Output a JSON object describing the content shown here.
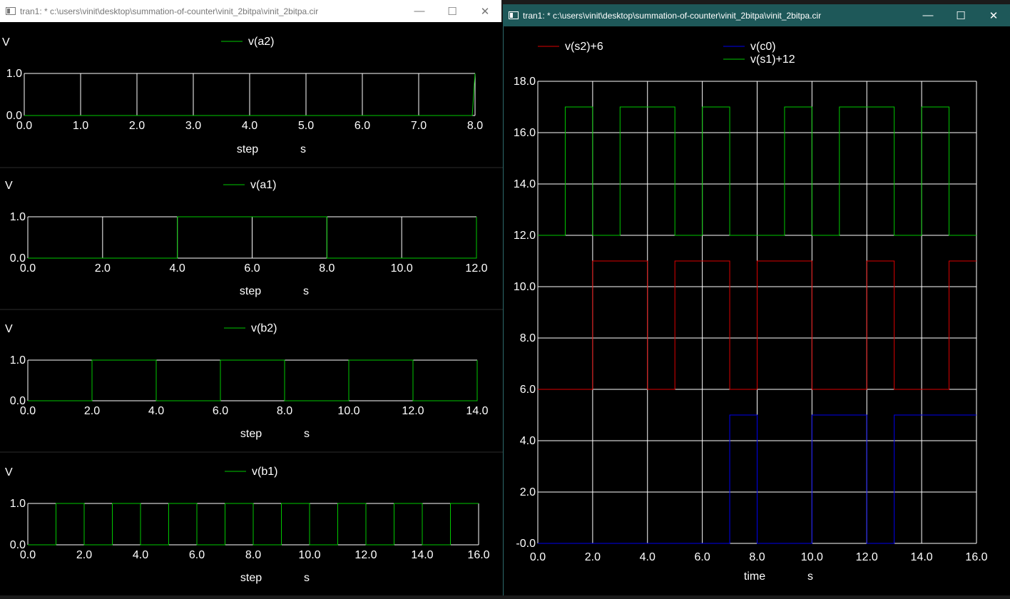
{
  "windows": [
    {
      "title": "tran1: * c:\\users\\vinit\\desktop\\summation-of-counter\\vinit_2bitpa\\vinit_2bitpa.cir",
      "controls": {
        "minimize": "—",
        "maximize": "☐",
        "close": "✕"
      }
    },
    {
      "title": "tran1: * c:\\users\\vinit\\desktop\\summation-of-counter\\vinit_2bitpa\\vinit_2bitpa.cir",
      "controls": {
        "minimize": "—",
        "maximize": "☐",
        "close": "✕"
      }
    }
  ],
  "colors": {
    "background": "#000000",
    "grid": "#ffffff",
    "text": "#ffffff",
    "green": "#00c800",
    "red": "#dd0000",
    "blue": "#0000ee"
  },
  "chart_data": [
    {
      "type": "line",
      "ylabel": "V",
      "xlabel": "step",
      "xunit": "s",
      "xlim": [
        0,
        8
      ],
      "ylim": [
        0,
        1
      ],
      "xticks": [
        "0.0",
        "1.0",
        "2.0",
        "3.0",
        "4.0",
        "5.0",
        "6.0",
        "7.0",
        "8.0"
      ],
      "yticks": [
        "0.0",
        "1.0"
      ],
      "series": [
        {
          "name": "v(a2)",
          "color": "#00c800",
          "x": [
            0,
            7.95,
            8
          ],
          "y": [
            0,
            0,
            1
          ]
        }
      ]
    },
    {
      "type": "line",
      "ylabel": "V",
      "xlabel": "step",
      "xunit": "s",
      "xlim": [
        0,
        12
      ],
      "ylim": [
        0,
        1
      ],
      "xticks": [
        "0.0",
        "2.0",
        "4.0",
        "6.0",
        "8.0",
        "10.0",
        "12.0"
      ],
      "yticks": [
        "0.0",
        "1.0"
      ],
      "series": [
        {
          "name": "v(a1)",
          "color": "#00c800",
          "x": [
            0,
            4,
            4,
            8,
            8,
            12,
            12
          ],
          "y": [
            0,
            0,
            1,
            1,
            0,
            0,
            1
          ]
        }
      ]
    },
    {
      "type": "line",
      "ylabel": "V",
      "xlabel": "step",
      "xunit": "s",
      "xlim": [
        0,
        14
      ],
      "ylim": [
        0,
        1
      ],
      "xticks": [
        "0.0",
        "2.0",
        "4.0",
        "6.0",
        "8.0",
        "10.0",
        "12.0",
        "14.0"
      ],
      "yticks": [
        "0.0",
        "1.0"
      ],
      "series": [
        {
          "name": "v(b2)",
          "color": "#00c800",
          "x": [
            0,
            2,
            2,
            4,
            4,
            6,
            6,
            8,
            8,
            10,
            10,
            12,
            12,
            14,
            14
          ],
          "y": [
            0,
            0,
            1,
            1,
            0,
            0,
            1,
            1,
            0,
            0,
            1,
            1,
            0,
            0,
            1
          ]
        }
      ]
    },
    {
      "type": "line",
      "ylabel": "V",
      "xlabel": "step",
      "xunit": "s",
      "xlim": [
        0,
        16
      ],
      "ylim": [
        0,
        1
      ],
      "xticks": [
        "0.0",
        "2.0",
        "4.0",
        "6.0",
        "8.0",
        "10.0",
        "12.0",
        "14.0",
        "16.0"
      ],
      "yticks": [
        "0.0",
        "1.0"
      ],
      "series": [
        {
          "name": "v(b1)",
          "color": "#00c800",
          "x": [
            0,
            1,
            1,
            2,
            2,
            3,
            3,
            4,
            4,
            5,
            5,
            6,
            6,
            7,
            7,
            8,
            8,
            9,
            9,
            10,
            10,
            11,
            11,
            12,
            12,
            13,
            13,
            14,
            14,
            15,
            15,
            16
          ],
          "y": [
            0,
            0,
            1,
            1,
            0,
            0,
            1,
            1,
            0,
            0,
            1,
            1,
            0,
            0,
            1,
            1,
            0,
            0,
            1,
            1,
            0,
            0,
            1,
            1,
            0,
            0,
            1,
            1,
            0,
            0,
            1,
            1
          ]
        }
      ]
    },
    {
      "type": "line",
      "xlabel": "time",
      "xunit": "s",
      "xlim": [
        0,
        16
      ],
      "ylim": [
        0,
        18
      ],
      "xticks": [
        "0.0",
        "2.0",
        "4.0",
        "6.0",
        "8.0",
        "10.0",
        "12.0",
        "14.0",
        "16.0"
      ],
      "yticks": [
        "-0.0",
        "2.0",
        "4.0",
        "6.0",
        "8.0",
        "10.0",
        "12.0",
        "14.0",
        "16.0",
        "18.0"
      ],
      "series": [
        {
          "name": "v(s2)+6",
          "color": "#dd0000",
          "x": [
            0,
            2,
            2,
            4,
            4,
            5,
            5,
            7,
            7,
            8,
            8,
            10,
            10,
            12,
            12,
            13,
            13,
            15,
            15,
            16
          ],
          "y": [
            6,
            6,
            11,
            11,
            6,
            6,
            11,
            11,
            6,
            6,
            11,
            11,
            6,
            6,
            11,
            11,
            6,
            6,
            11,
            11
          ]
        },
        {
          "name": "v(c0)",
          "color": "#0000ee",
          "x": [
            0,
            7,
            7,
            8,
            8,
            10,
            10,
            12,
            12,
            13,
            13,
            16
          ],
          "y": [
            0,
            0,
            5,
            5,
            0,
            0,
            5,
            5,
            0,
            0,
            5,
            5
          ]
        },
        {
          "name": "v(s1)+12",
          "color": "#00c800",
          "x": [
            0,
            1,
            1,
            2,
            2,
            3,
            3,
            5,
            5,
            6,
            6,
            7,
            7,
            9,
            9,
            10,
            10,
            11,
            11,
            13,
            13,
            14,
            14,
            15,
            15,
            16
          ],
          "y": [
            12,
            12,
            17,
            17,
            12,
            12,
            17,
            17,
            12,
            12,
            17,
            17,
            12,
            12,
            17,
            17,
            12,
            12,
            17,
            17,
            12,
            12,
            17,
            17,
            12,
            12
          ]
        }
      ]
    }
  ]
}
